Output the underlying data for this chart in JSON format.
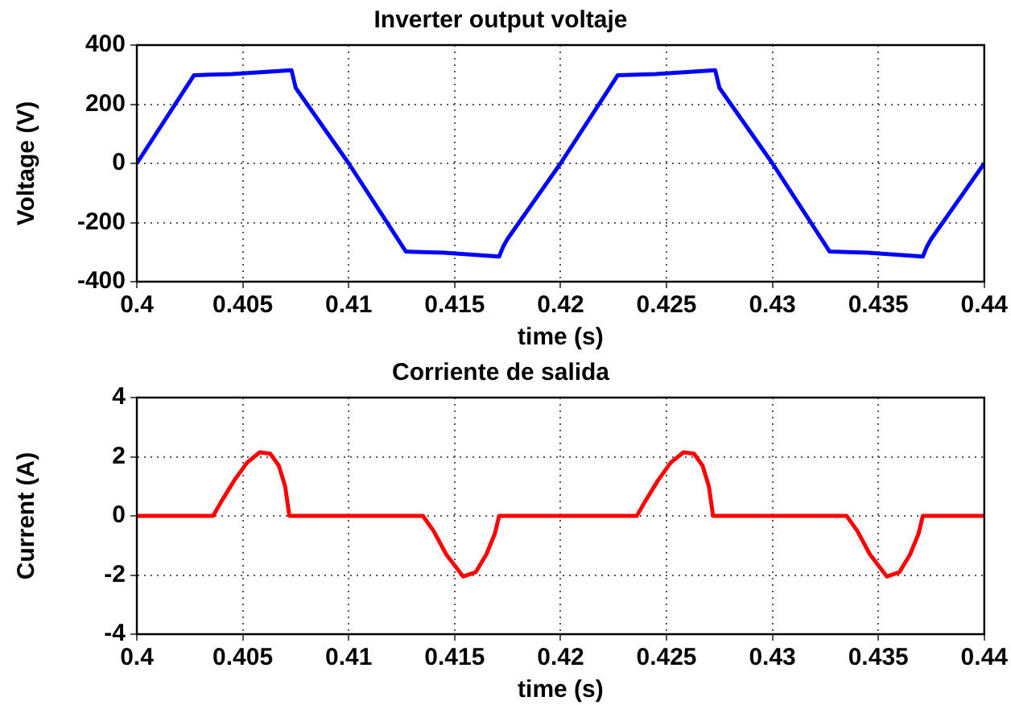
{
  "chart_data": [
    {
      "type": "line",
      "title": "Inverter output voltaje",
      "xlabel": "time (s)",
      "ylabel": "Voltage (V)",
      "xlim": [
        0.4,
        0.44
      ],
      "xticks": [
        0.4,
        0.405,
        0.41,
        0.415,
        0.42,
        0.425,
        0.43,
        0.435,
        0.44
      ],
      "ylim": [
        -400,
        400
      ],
      "yticks": [
        -400,
        -200,
        0,
        200,
        400
      ],
      "grid": true,
      "legend": false,
      "marker": "none",
      "line_style": "solid",
      "series": [
        {
          "color": "#0000ff",
          "x": [
            0.4,
            0.4027,
            0.4045,
            0.4073,
            0.4075,
            0.41,
            0.4127,
            0.4145,
            0.4171,
            0.4173,
            0.4175,
            0.42,
            0.4227,
            0.4245,
            0.4273,
            0.4275,
            0.43,
            0.4327,
            0.4345,
            0.4371,
            0.4373,
            0.4375,
            0.44
          ],
          "values": [
            0,
            298,
            302,
            315,
            255,
            0,
            -298,
            -302,
            -315,
            -280,
            -255,
            0,
            298,
            302,
            315,
            255,
            0,
            -298,
            -302,
            -315,
            -280,
            -255,
            0
          ]
        }
      ]
    },
    {
      "type": "line",
      "title": "Corriente de salida",
      "xlabel": "time (s)",
      "ylabel": "Current (A)",
      "xlim": [
        0.4,
        0.44
      ],
      "xticks": [
        0.4,
        0.405,
        0.41,
        0.415,
        0.42,
        0.425,
        0.43,
        0.435,
        0.44
      ],
      "ylim": [
        -4,
        4
      ],
      "yticks": [
        -4,
        -2,
        0,
        2,
        4
      ],
      "grid": true,
      "legend": false,
      "marker": "none",
      "line_style": "solid",
      "series": [
        {
          "color": "#ff0000",
          "x": [
            0.4,
            0.4036,
            0.404,
            0.4046,
            0.4052,
            0.4058,
            0.4063,
            0.4067,
            0.407,
            0.4072,
            0.41,
            0.4135,
            0.414,
            0.4146,
            0.4154,
            0.416,
            0.4165,
            0.4169,
            0.4171,
            0.42,
            0.4236,
            0.424,
            0.4246,
            0.4252,
            0.4258,
            0.4263,
            0.4267,
            0.427,
            0.4272,
            0.43,
            0.4335,
            0.434,
            0.4346,
            0.4354,
            0.436,
            0.4365,
            0.4369,
            0.4371,
            0.44
          ],
          "values": [
            0,
            0,
            0.5,
            1.2,
            1.8,
            2.15,
            2.1,
            1.7,
            1.0,
            0,
            0,
            0,
            -0.5,
            -1.3,
            -2.05,
            -1.9,
            -1.3,
            -0.6,
            0,
            0,
            0,
            0.5,
            1.2,
            1.8,
            2.15,
            2.1,
            1.7,
            1.0,
            0,
            0,
            0,
            -0.5,
            -1.3,
            -2.05,
            -1.9,
            -1.3,
            -0.6,
            0,
            0
          ]
        }
      ]
    }
  ]
}
